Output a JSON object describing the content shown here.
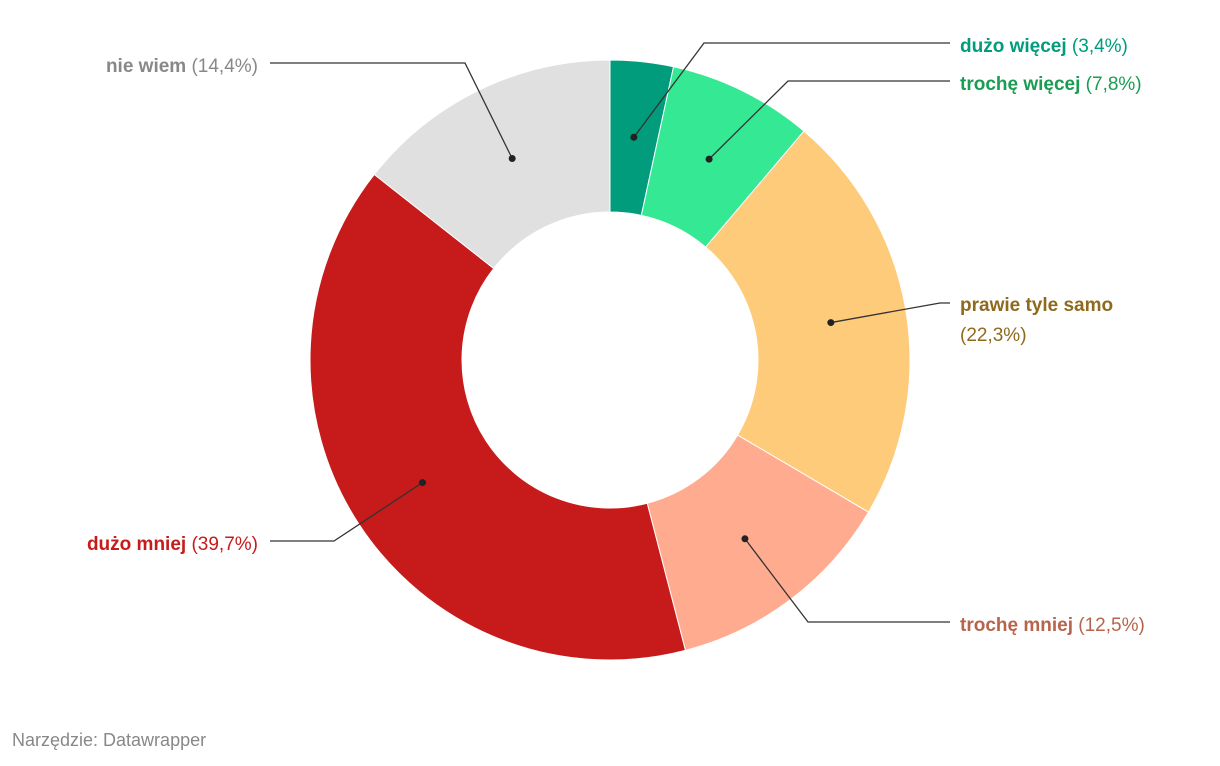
{
  "chart_data": {
    "type": "pie",
    "variant": "donut",
    "title": "",
    "slices": [
      {
        "name": "dużo więcej",
        "value": 3.4,
        "value_label": "(3,4%)",
        "color": "#009c7b",
        "label_color": "#009c7b",
        "label_side": "right"
      },
      {
        "name": "trochę więcej",
        "value": 7.8,
        "value_label": "(7,8%)",
        "color": "#34e894",
        "label_color": "#1a9c53",
        "label_side": "right"
      },
      {
        "name": "prawie tyle samo",
        "value": 22.3,
        "value_label": "(22,3%)",
        "color": "#fecb7b",
        "label_color": "#8f6a1e",
        "label_side": "right"
      },
      {
        "name": "trochę mniej",
        "value": 12.5,
        "value_label": "(12,5%)",
        "color": "#ffab8f",
        "label_color": "#b7644c",
        "label_side": "right"
      },
      {
        "name": "dużo mniej",
        "value": 39.7,
        "value_label": "(39,7%)",
        "color": "#c71b1b",
        "label_color": "#c71b1b",
        "label_side": "left"
      },
      {
        "name": "nie wiem",
        "value": 14.4,
        "value_label": "(14,4%)",
        "color": "#e0e0e0",
        "label_color": "#888888",
        "label_side": "left"
      }
    ]
  },
  "footer": {
    "source": "Narzędzie: Datawrapper"
  }
}
